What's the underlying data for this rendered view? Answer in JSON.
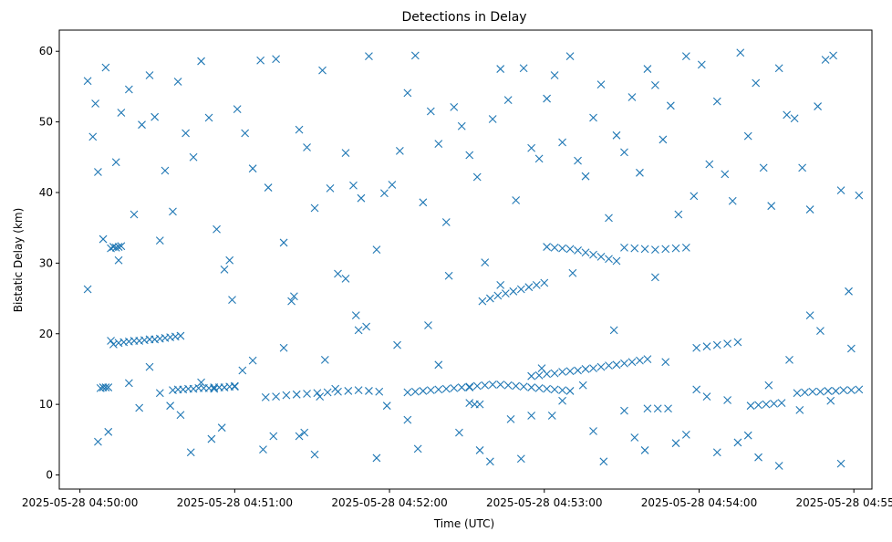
{
  "chart_data": {
    "type": "scatter",
    "title": "Detections in Delay",
    "xlabel": "Time (UTC)",
    "ylabel": "Bistatic Delay (km)",
    "x_axis_kind": "time",
    "xlim": [
      "2025-05-28 04:49:52",
      "2025-05-28 04:55:07"
    ],
    "ylim": [
      -2,
      63
    ],
    "x_ticks": [
      "2025-05-28 04:50:00",
      "2025-05-28 04:51:00",
      "2025-05-28 04:52:00",
      "2025-05-28 04:53:00",
      "2025-05-28 04:54:00",
      "2025-05-28 04:55:00"
    ],
    "y_ticks": [
      "0",
      "10",
      "20",
      "30",
      "40",
      "50",
      "60"
    ],
    "grid": false,
    "marker": "x",
    "color": "#1f77b4",
    "series": [
      {
        "x": [
          "2025-05-28 04:50:03",
          "2025-05-28 04:50:05",
          "2025-05-28 04:50:06",
          "2025-05-28 04:50:07",
          "2025-05-28 04:50:09",
          "2025-05-28 04:50:10",
          "2025-05-28 04:50:12",
          "2025-05-28 04:50:14",
          "2025-05-28 04:50:16",
          "2025-05-28 04:50:19",
          "2025-05-28 04:50:21",
          "2025-05-28 04:50:24",
          "2025-05-28 04:50:27",
          "2025-05-28 04:50:29",
          "2025-05-28 04:50:31",
          "2025-05-28 04:50:33",
          "2025-05-28 04:50:36",
          "2025-05-28 04:50:38",
          "2025-05-28 04:50:41",
          "2025-05-28 04:50:44",
          "2025-05-28 04:50:47",
          "2025-05-28 04:50:50",
          "2025-05-28 04:50:53",
          "2025-05-28 04:50:56",
          "2025-05-28 04:50:58",
          "2025-05-28 04:51:01",
          "2025-05-28 04:51:04",
          "2025-05-28 04:51:07",
          "2025-05-28 04:51:10",
          "2025-05-28 04:51:13",
          "2025-05-28 04:51:16",
          "2025-05-28 04:51:19",
          "2025-05-28 04:51:22",
          "2025-05-28 04:51:25",
          "2025-05-28 04:51:28",
          "2025-05-28 04:51:31",
          "2025-05-28 04:51:34",
          "2025-05-28 04:51:37",
          "2025-05-28 04:51:40",
          "2025-05-28 04:51:43",
          "2025-05-28 04:51:46",
          "2025-05-28 04:51:49",
          "2025-05-28 04:51:52",
          "2025-05-28 04:51:55",
          "2025-05-28 04:51:58",
          "2025-05-28 04:52:01",
          "2025-05-28 04:52:04",
          "2025-05-28 04:52:07",
          "2025-05-28 04:52:10",
          "2025-05-28 04:52:13",
          "2025-05-28 04:52:16",
          "2025-05-28 04:52:19",
          "2025-05-28 04:52:22",
          "2025-05-28 04:52:25",
          "2025-05-28 04:52:28",
          "2025-05-28 04:52:31",
          "2025-05-28 04:52:34",
          "2025-05-28 04:52:37",
          "2025-05-28 04:52:40",
          "2025-05-28 04:52:43",
          "2025-05-28 04:52:46",
          "2025-05-28 04:52:49",
          "2025-05-28 04:52:52",
          "2025-05-28 04:52:55",
          "2025-05-28 04:52:58",
          "2025-05-28 04:53:01",
          "2025-05-28 04:53:04",
          "2025-05-28 04:53:07",
          "2025-05-28 04:53:10",
          "2025-05-28 04:53:13",
          "2025-05-28 04:53:16",
          "2025-05-28 04:53:19",
          "2025-05-28 04:53:22",
          "2025-05-28 04:53:25",
          "2025-05-28 04:53:28",
          "2025-05-28 04:53:31",
          "2025-05-28 04:53:34",
          "2025-05-28 04:53:37",
          "2025-05-28 04:53:40",
          "2025-05-28 04:53:43",
          "2025-05-28 04:53:46",
          "2025-05-28 04:53:49",
          "2025-05-28 04:53:52",
          "2025-05-28 04:53:55",
          "2025-05-28 04:53:58",
          "2025-05-28 04:54:01",
          "2025-05-28 04:54:04",
          "2025-05-28 04:54:07",
          "2025-05-28 04:54:10",
          "2025-05-28 04:54:13",
          "2025-05-28 04:54:16",
          "2025-05-28 04:54:19",
          "2025-05-28 04:54:22",
          "2025-05-28 04:54:25",
          "2025-05-28 04:54:28",
          "2025-05-28 04:54:31",
          "2025-05-28 04:54:34",
          "2025-05-28 04:54:37",
          "2025-05-28 04:54:40",
          "2025-05-28 04:54:43",
          "2025-05-28 04:54:46",
          "2025-05-28 04:54:49",
          "2025-05-28 04:54:52",
          "2025-05-28 04:54:55",
          "2025-05-28 04:54:58",
          "2025-05-28 04:55:02",
          "2025-05-28 04:50:03",
          "2025-05-28 04:50:07",
          "2025-05-28 04:50:11",
          "2025-05-28 04:50:15",
          "2025-05-28 04:50:19",
          "2025-05-28 04:50:23",
          "2025-05-28 04:50:27",
          "2025-05-28 04:50:31",
          "2025-05-28 04:50:35",
          "2025-05-28 04:50:39",
          "2025-05-28 04:50:43",
          "2025-05-28 04:50:47",
          "2025-05-28 04:50:51",
          "2025-05-28 04:50:55",
          "2025-05-28 04:50:59",
          "2025-05-28 04:51:03",
          "2025-05-28 04:51:07",
          "2025-05-28 04:51:11",
          "2025-05-28 04:51:15",
          "2025-05-28 04:51:19",
          "2025-05-28 04:51:23",
          "2025-05-28 04:51:27",
          "2025-05-28 04:51:31",
          "2025-05-28 04:51:35",
          "2025-05-28 04:51:39",
          "2025-05-28 04:51:43",
          "2025-05-28 04:51:47",
          "2025-05-28 04:51:51",
          "2025-05-28 04:51:55",
          "2025-05-28 04:51:59",
          "2025-05-28 04:52:03",
          "2025-05-28 04:52:07",
          "2025-05-28 04:52:11",
          "2025-05-28 04:52:15",
          "2025-05-28 04:52:19",
          "2025-05-28 04:52:23",
          "2025-05-28 04:52:27",
          "2025-05-28 04:52:31",
          "2025-05-28 04:52:35",
          "2025-05-28 04:52:39",
          "2025-05-28 04:52:43",
          "2025-05-28 04:52:47",
          "2025-05-28 04:52:51",
          "2025-05-28 04:52:55",
          "2025-05-28 04:52:59",
          "2025-05-28 04:53:03",
          "2025-05-28 04:53:07",
          "2025-05-28 04:53:11",
          "2025-05-28 04:53:15",
          "2025-05-28 04:53:19",
          "2025-05-28 04:53:23",
          "2025-05-28 04:53:27",
          "2025-05-28 04:53:31",
          "2025-05-28 04:53:35",
          "2025-05-28 04:53:39",
          "2025-05-28 04:53:43",
          "2025-05-28 04:53:47",
          "2025-05-28 04:53:51",
          "2025-05-28 04:53:55",
          "2025-05-28 04:53:59",
          "2025-05-28 04:54:03",
          "2025-05-28 04:54:07",
          "2025-05-28 04:54:11",
          "2025-05-28 04:54:15",
          "2025-05-28 04:54:19",
          "2025-05-28 04:54:23",
          "2025-05-28 04:54:27",
          "2025-05-28 04:54:31",
          "2025-05-28 04:54:35",
          "2025-05-28 04:54:39",
          "2025-05-28 04:54:43",
          "2025-05-28 04:54:47",
          "2025-05-28 04:54:51",
          "2025-05-28 04:54:55",
          "2025-05-28 04:54:59",
          "2025-05-28 04:50:08",
          "2025-05-28 04:50:09",
          "2025-05-28 04:50:10",
          "2025-05-28 04:50:11",
          "2025-05-28 04:50:12",
          "2025-05-28 04:50:13",
          "2025-05-28 04:50:14",
          "2025-05-28 04:50:15",
          "2025-05-28 04:50:16",
          "2025-05-28 04:50:13",
          "2025-05-28 04:50:15",
          "2025-05-28 04:50:17",
          "2025-05-28 04:50:19",
          "2025-05-28 04:50:21",
          "2025-05-28 04:50:23",
          "2025-05-28 04:50:25",
          "2025-05-28 04:50:27",
          "2025-05-28 04:50:29",
          "2025-05-28 04:50:31",
          "2025-05-28 04:50:33",
          "2025-05-28 04:50:35",
          "2025-05-28 04:50:37",
          "2025-05-28 04:50:39",
          "2025-05-28 04:50:36",
          "2025-05-28 04:50:38",
          "2025-05-28 04:50:40",
          "2025-05-28 04:50:42",
          "2025-05-28 04:50:44",
          "2025-05-28 04:50:46",
          "2025-05-28 04:50:48",
          "2025-05-28 04:50:50",
          "2025-05-28 04:50:52",
          "2025-05-28 04:50:54",
          "2025-05-28 04:50:56",
          "2025-05-28 04:50:58",
          "2025-05-28 04:51:00",
          "2025-05-28 04:51:12",
          "2025-05-28 04:51:16",
          "2025-05-28 04:51:20",
          "2025-05-28 04:51:24",
          "2025-05-28 04:51:28",
          "2025-05-28 04:51:32",
          "2025-05-28 04:51:36",
          "2025-05-28 04:51:40",
          "2025-05-28 04:51:44",
          "2025-05-28 04:51:48",
          "2025-05-28 04:51:52",
          "2025-05-28 04:51:56",
          "2025-05-28 04:52:07",
          "2025-05-28 04:52:10",
          "2025-05-28 04:52:13",
          "2025-05-28 04:52:16",
          "2025-05-28 04:52:19",
          "2025-05-28 04:52:22",
          "2025-05-28 04:52:25",
          "2025-05-28 04:52:28",
          "2025-05-28 04:52:31",
          "2025-05-28 04:52:34",
          "2025-05-28 04:52:37",
          "2025-05-28 04:52:40",
          "2025-05-28 04:52:43",
          "2025-05-28 04:52:46",
          "2025-05-28 04:52:49",
          "2025-05-28 04:52:52",
          "2025-05-28 04:52:55",
          "2025-05-28 04:52:58",
          "2025-05-28 04:53:01",
          "2025-05-28 04:53:04",
          "2025-05-28 04:53:07",
          "2025-05-28 04:53:10",
          "2025-05-28 04:52:36",
          "2025-05-28 04:52:39",
          "2025-05-28 04:52:42",
          "2025-05-28 04:52:45",
          "2025-05-28 04:52:48",
          "2025-05-28 04:52:51",
          "2025-05-28 04:52:54",
          "2025-05-28 04:52:57",
          "2025-05-28 04:53:00",
          "2025-05-28 04:52:55",
          "2025-05-28 04:52:58",
          "2025-05-28 04:53:01",
          "2025-05-28 04:53:04",
          "2025-05-28 04:53:07",
          "2025-05-28 04:53:10",
          "2025-05-28 04:53:13",
          "2025-05-28 04:53:16",
          "2025-05-28 04:53:19",
          "2025-05-28 04:53:22",
          "2025-05-28 04:53:25",
          "2025-05-28 04:53:28",
          "2025-05-28 04:53:31",
          "2025-05-28 04:53:34",
          "2025-05-28 04:53:37",
          "2025-05-28 04:53:40",
          "2025-05-28 04:53:01",
          "2025-05-28 04:53:04",
          "2025-05-28 04:53:07",
          "2025-05-28 04:53:10",
          "2025-05-28 04:53:13",
          "2025-05-28 04:53:16",
          "2025-05-28 04:53:19",
          "2025-05-28 04:53:22",
          "2025-05-28 04:53:25",
          "2025-05-28 04:53:28",
          "2025-05-28 04:53:31",
          "2025-05-28 04:53:35",
          "2025-05-28 04:53:39",
          "2025-05-28 04:53:43",
          "2025-05-28 04:53:47",
          "2025-05-28 04:53:51",
          "2025-05-28 04:53:55",
          "2025-05-28 04:53:59",
          "2025-05-28 04:54:03",
          "2025-05-28 04:54:07",
          "2025-05-28 04:54:11",
          "2025-05-28 04:54:15",
          "2025-05-28 04:53:40",
          "2025-05-28 04:53:44",
          "2025-05-28 04:53:48",
          "2025-05-28 04:54:20",
          "2025-05-28 04:54:23",
          "2025-05-28 04:54:26",
          "2025-05-28 04:54:29",
          "2025-05-28 04:54:32",
          "2025-05-28 04:54:38",
          "2025-05-28 04:54:41",
          "2025-05-28 04:54:44",
          "2025-05-28 04:54:47",
          "2025-05-28 04:54:50",
          "2025-05-28 04:54:53",
          "2025-05-28 04:54:56",
          "2025-05-28 04:54:59",
          "2025-05-28 04:55:02",
          "2025-05-28 04:50:52",
          "2025-05-28 04:51:00",
          "2025-05-28 04:51:25",
          "2025-05-28 04:51:33",
          "2025-05-28 04:51:48",
          "2025-05-28 04:52:31",
          "2025-05-28 04:52:33",
          "2025-05-28 04:52:35"
        ],
        "y": [
          55.8,
          47.9,
          52.6,
          42.9,
          33.4,
          57.7,
          19.0,
          44.3,
          51.3,
          54.6,
          36.9,
          49.6,
          56.6,
          50.7,
          33.2,
          43.1,
          37.3,
          55.7,
          48.4,
          45.0,
          58.6,
          50.6,
          34.8,
          29.1,
          30.4,
          51.8,
          48.4,
          43.4,
          58.7,
          40.7,
          58.9,
          32.9,
          24.6,
          48.9,
          46.4,
          37.8,
          57.3,
          40.6,
          28.5,
          45.6,
          41.0,
          39.2,
          59.3,
          31.9,
          39.9,
          41.1,
          45.9,
          54.1,
          59.4,
          38.6,
          51.5,
          46.9,
          35.8,
          52.1,
          49.4,
          45.3,
          42.2,
          30.1,
          50.4,
          57.5,
          53.1,
          38.9,
          57.6,
          46.3,
          44.8,
          53.3,
          56.6,
          47.1,
          59.3,
          44.5,
          42.3,
          50.6,
          55.3,
          36.4,
          48.1,
          45.7,
          53.5,
          42.8,
          57.5,
          55.2,
          47.5,
          52.3,
          36.9,
          59.3,
          39.5,
          58.1,
          44.0,
          52.9,
          42.6,
          38.8,
          59.8,
          48.0,
          55.5,
          43.5,
          38.1,
          57.6,
          51.0,
          50.5,
          43.5,
          37.6,
          52.2,
          58.8,
          59.4,
          40.3,
          26.0,
          39.6,
          26.3,
          4.7,
          6.1,
          30.4,
          13.0,
          9.5,
          15.3,
          11.6,
          9.8,
          8.5,
          3.2,
          13.1,
          5.1,
          6.7,
          24.8,
          14.8,
          16.2,
          3.6,
          5.5,
          18.0,
          25.3,
          6.0,
          2.9,
          16.3,
          12.2,
          27.8,
          22.6,
          21.0,
          2.4,
          9.8,
          18.4,
          7.8,
          3.7,
          21.2,
          15.6,
          28.2,
          6.0,
          10.2,
          3.5,
          1.9,
          26.9,
          7.9,
          2.3,
          8.4,
          15.1,
          8.4,
          10.5,
          28.6,
          12.7,
          6.2,
          1.9,
          20.5,
          9.1,
          5.3,
          3.5,
          28.0,
          16.0,
          4.5,
          5.7,
          12.1,
          11.1,
          3.2,
          10.6,
          4.6,
          5.6,
          2.5,
          12.7,
          1.3,
          16.3,
          9.2,
          22.6,
          20.4,
          10.5,
          1.6,
          17.9,
          12.3,
          12.4,
          12.4,
          12.4,
          32.1,
          32.3,
          32.2,
          32.3,
          32.4,
          18.5,
          18.7,
          18.8,
          18.9,
          19.0,
          19.0,
          19.1,
          19.2,
          19.2,
          19.3,
          19.4,
          19.5,
          19.6,
          19.7,
          12.0,
          12.1,
          12.1,
          12.2,
          12.2,
          12.3,
          12.3,
          12.3,
          12.4,
          12.4,
          12.4,
          12.5,
          12.5,
          11.0,
          11.1,
          11.3,
          11.4,
          11.5,
          11.6,
          11.7,
          11.8,
          11.9,
          12.0,
          11.9,
          11.8,
          11.7,
          11.8,
          11.9,
          12.0,
          12.1,
          12.2,
          12.3,
          12.4,
          12.5,
          12.6,
          12.7,
          12.8,
          12.8,
          12.7,
          12.6,
          12.5,
          12.4,
          12.3,
          12.2,
          12.1,
          12.0,
          11.9,
          24.6,
          25.0,
          25.4,
          25.7,
          26.0,
          26.3,
          26.6,
          26.9,
          27.2,
          14.0,
          14.1,
          14.3,
          14.4,
          14.6,
          14.7,
          14.8,
          15.0,
          15.1,
          15.3,
          15.5,
          15.6,
          15.8,
          16.0,
          16.2,
          16.4,
          32.3,
          32.2,
          32.1,
          32.0,
          31.8,
          31.5,
          31.2,
          30.9,
          30.6,
          30.3,
          32.2,
          32.1,
          32.0,
          31.9,
          32.0,
          32.1,
          32.2,
          18.0,
          18.2,
          18.4,
          18.6,
          18.8,
          9.4,
          9.4,
          9.4,
          9.8,
          9.9,
          10.0,
          10.1,
          10.2,
          11.6,
          11.7,
          11.8,
          11.8,
          11.9,
          11.9,
          12.0,
          12.0,
          12.1,
          12.2,
          12.6,
          5.5,
          11.1,
          20.5,
          12.4,
          10.0,
          10.0
        ]
      }
    ]
  }
}
